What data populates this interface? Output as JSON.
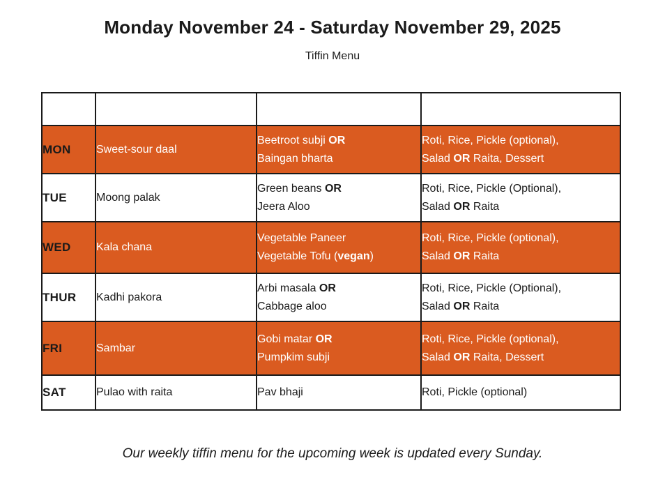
{
  "page": {
    "title": "Monday November 24 - Saturday November 29, 2025",
    "subtitle": "Tiffin Menu",
    "footer": "Our weekly tiffin menu for the upcoming week is updated every Sunday."
  },
  "colors": {
    "accent_orange": "#DA5B20",
    "border_black": "#1a1a1a",
    "text_dark": "#1a1a1a",
    "text_light": "#ffffff"
  },
  "menu_table": {
    "header_cells": [
      "",
      "",
      "",
      ""
    ],
    "rows": [
      {
        "day": "MON",
        "highlighted": true,
        "dishes": [
          [
            [
              {
                "t": "Sweet-sour daal"
              }
            ]
          ],
          [
            [
              {
                "t": "Beetroot subji "
              },
              {
                "t": "OR",
                "b": true
              }
            ],
            [
              {
                "t": "Baingan bharta"
              }
            ]
          ],
          [
            [
              {
                "t": "Roti, Rice, Pickle (optional),"
              }
            ],
            [
              {
                "t": "Salad "
              },
              {
                "t": "OR",
                "b": true
              },
              {
                "t": " Raita, Dessert"
              }
            ]
          ]
        ]
      },
      {
        "day": "TUE",
        "highlighted": false,
        "dishes": [
          [
            [
              {
                "t": "Moong palak"
              }
            ]
          ],
          [
            [
              {
                "t": "Green beans "
              },
              {
                "t": "OR",
                "b": true
              }
            ],
            [
              {
                "t": "Jeera Aloo"
              }
            ]
          ],
          [
            [
              {
                "t": "Roti, Rice, Pickle (Optional),"
              }
            ],
            [
              {
                "t": "Salad "
              },
              {
                "t": "OR",
                "b": true
              },
              {
                "t": " Raita"
              }
            ]
          ]
        ]
      },
      {
        "day": "WED",
        "highlighted": true,
        "dishes": [
          [
            [
              {
                "t": "Kala chana"
              }
            ]
          ],
          [
            [
              {
                "t": "Vegetable Paneer"
              }
            ],
            [
              {
                "t": "Vegetable Tofu ("
              },
              {
                "t": "vegan",
                "b": true
              },
              {
                "t": ")"
              }
            ]
          ],
          [
            [
              {
                "t": "Roti, Rice, Pickle (optional),"
              }
            ],
            [
              {
                "t": "Salad "
              },
              {
                "t": "OR",
                "b": true
              },
              {
                "t": " Raita"
              }
            ]
          ]
        ]
      },
      {
        "day": "THUR",
        "highlighted": false,
        "dishes": [
          [
            [
              {
                "t": "Kadhi pakora"
              }
            ]
          ],
          [
            [
              {
                "t": "Arbi masala "
              },
              {
                "t": "OR",
                "b": true
              }
            ],
            [
              {
                "t": "Cabbage aloo"
              }
            ]
          ],
          [
            [
              {
                "t": "Roti, Rice, Pickle (Optional),"
              }
            ],
            [
              {
                "t": "Salad "
              },
              {
                "t": "OR",
                "b": true
              },
              {
                "t": " Raita"
              }
            ]
          ]
        ]
      },
      {
        "day": "FRI",
        "highlighted": true,
        "dishes": [
          [
            [
              {
                "t": "Sambar"
              }
            ]
          ],
          [
            [
              {
                "t": "Gobi matar "
              },
              {
                "t": "OR",
                "b": true
              }
            ],
            [
              {
                "t": "Pumpkim subji"
              }
            ]
          ],
          [
            [
              {
                "t": "Roti, Rice, Pickle (optional),"
              }
            ],
            [
              {
                "t": "Salad "
              },
              {
                "t": "OR",
                "b": true
              },
              {
                "t": " Raita, Dessert"
              }
            ]
          ]
        ]
      },
      {
        "day": "SAT",
        "highlighted": false,
        "dishes": [
          [
            [
              {
                "t": "Pulao with raita"
              }
            ]
          ],
          [
            [
              {
                "t": "Pav bhaji"
              }
            ]
          ],
          [
            [
              {
                "t": "Roti, Pickle (optional)"
              }
            ]
          ]
        ]
      }
    ]
  }
}
